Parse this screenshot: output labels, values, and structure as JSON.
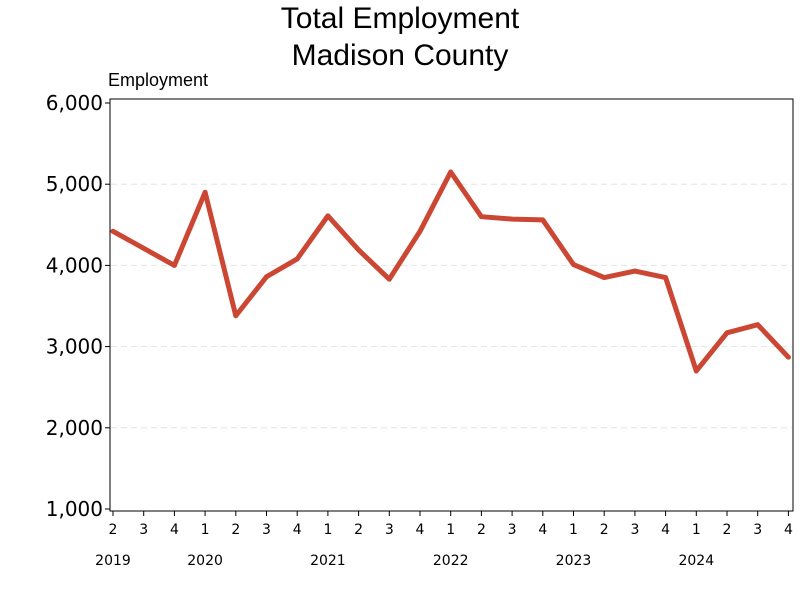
{
  "chart_data": {
    "type": "line",
    "title": "Total Employment",
    "subtitle": "Madison County",
    "ylabel": "Employment",
    "xlabel": "",
    "ylim": [
      1000,
      6000
    ],
    "yticks": [
      "1,000",
      "2,000",
      "3,000",
      "4,000",
      "5,000",
      "6,000"
    ],
    "grid": "horizontal dashed",
    "line_color": "#cc4733",
    "x": [
      "2019 Q2",
      "2019 Q3",
      "2019 Q4",
      "2020 Q1",
      "2020 Q2",
      "2020 Q3",
      "2020 Q4",
      "2021 Q1",
      "2021 Q2",
      "2021 Q3",
      "2021 Q4",
      "2022 Q1",
      "2022 Q2",
      "2022 Q3",
      "2022 Q4",
      "2023 Q1",
      "2023 Q2",
      "2023 Q3",
      "2023 Q4",
      "2024 Q1",
      "2024 Q2",
      "2024 Q3",
      "2024 Q4"
    ],
    "quarter_labels": [
      "2",
      "3",
      "4",
      "1",
      "2",
      "3",
      "4",
      "1",
      "2",
      "3",
      "4",
      "1",
      "2",
      "3",
      "4",
      "1",
      "2",
      "3",
      "4",
      "1",
      "2",
      "3",
      "4"
    ],
    "year_labels": [
      {
        "year": "2019",
        "index": 0
      },
      {
        "year": "2020",
        "index": 3
      },
      {
        "year": "2021",
        "index": 7
      },
      {
        "year": "2022",
        "index": 11
      },
      {
        "year": "2023",
        "index": 15
      },
      {
        "year": "2024",
        "index": 19
      }
    ],
    "series": [
      {
        "values": [
          4420,
          4210,
          4000,
          4900,
          3380,
          3860,
          4080,
          4610,
          4190,
          3830,
          4420,
          5150,
          4600,
          4570,
          4560,
          4010,
          3850,
          3930,
          3850,
          2700,
          3170,
          3270,
          2870
        ]
      }
    ]
  }
}
